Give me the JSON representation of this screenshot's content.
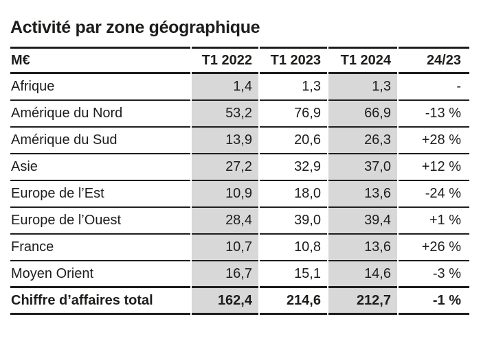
{
  "title": "Activité par zone géographique",
  "table": {
    "columns": [
      "M€",
      "T1 2022",
      "T1 2023",
      "T1 2024",
      "24/23"
    ],
    "rows": [
      [
        "Afrique",
        "1,4",
        "1,3",
        "1,3",
        "-"
      ],
      [
        "Amérique du Nord",
        "53,2",
        "76,9",
        "66,9",
        "-13 %"
      ],
      [
        "Amérique du Sud",
        "13,9",
        "20,6",
        "26,3",
        "+28 %"
      ],
      [
        "Asie",
        "27,2",
        "32,9",
        "37,0",
        "+12 %"
      ],
      [
        "Europe de l’Est",
        "10,9",
        "18,0",
        "13,6",
        "-24 %"
      ],
      [
        "Europe de l’Ouest",
        "28,4",
        "39,0",
        "39,4",
        "+1 %"
      ],
      [
        "France",
        "10,7",
        "10,8",
        "13,6",
        "+26 %"
      ],
      [
        "Moyen Orient",
        "16,7",
        "15,1",
        "14,6",
        "-3 %"
      ]
    ],
    "total_row": [
      "Chiffre d’affaires total",
      "162,4",
      "214,6",
      "212,7",
      "-1 %"
    ],
    "shaded_columns": [
      "T1 2022",
      "T1 2024"
    ],
    "colors": {
      "shaded_column_bg": "#d8d8d8",
      "rule": "#1d1d1b",
      "text": "#1d1d1b",
      "background": "#ffffff"
    }
  }
}
